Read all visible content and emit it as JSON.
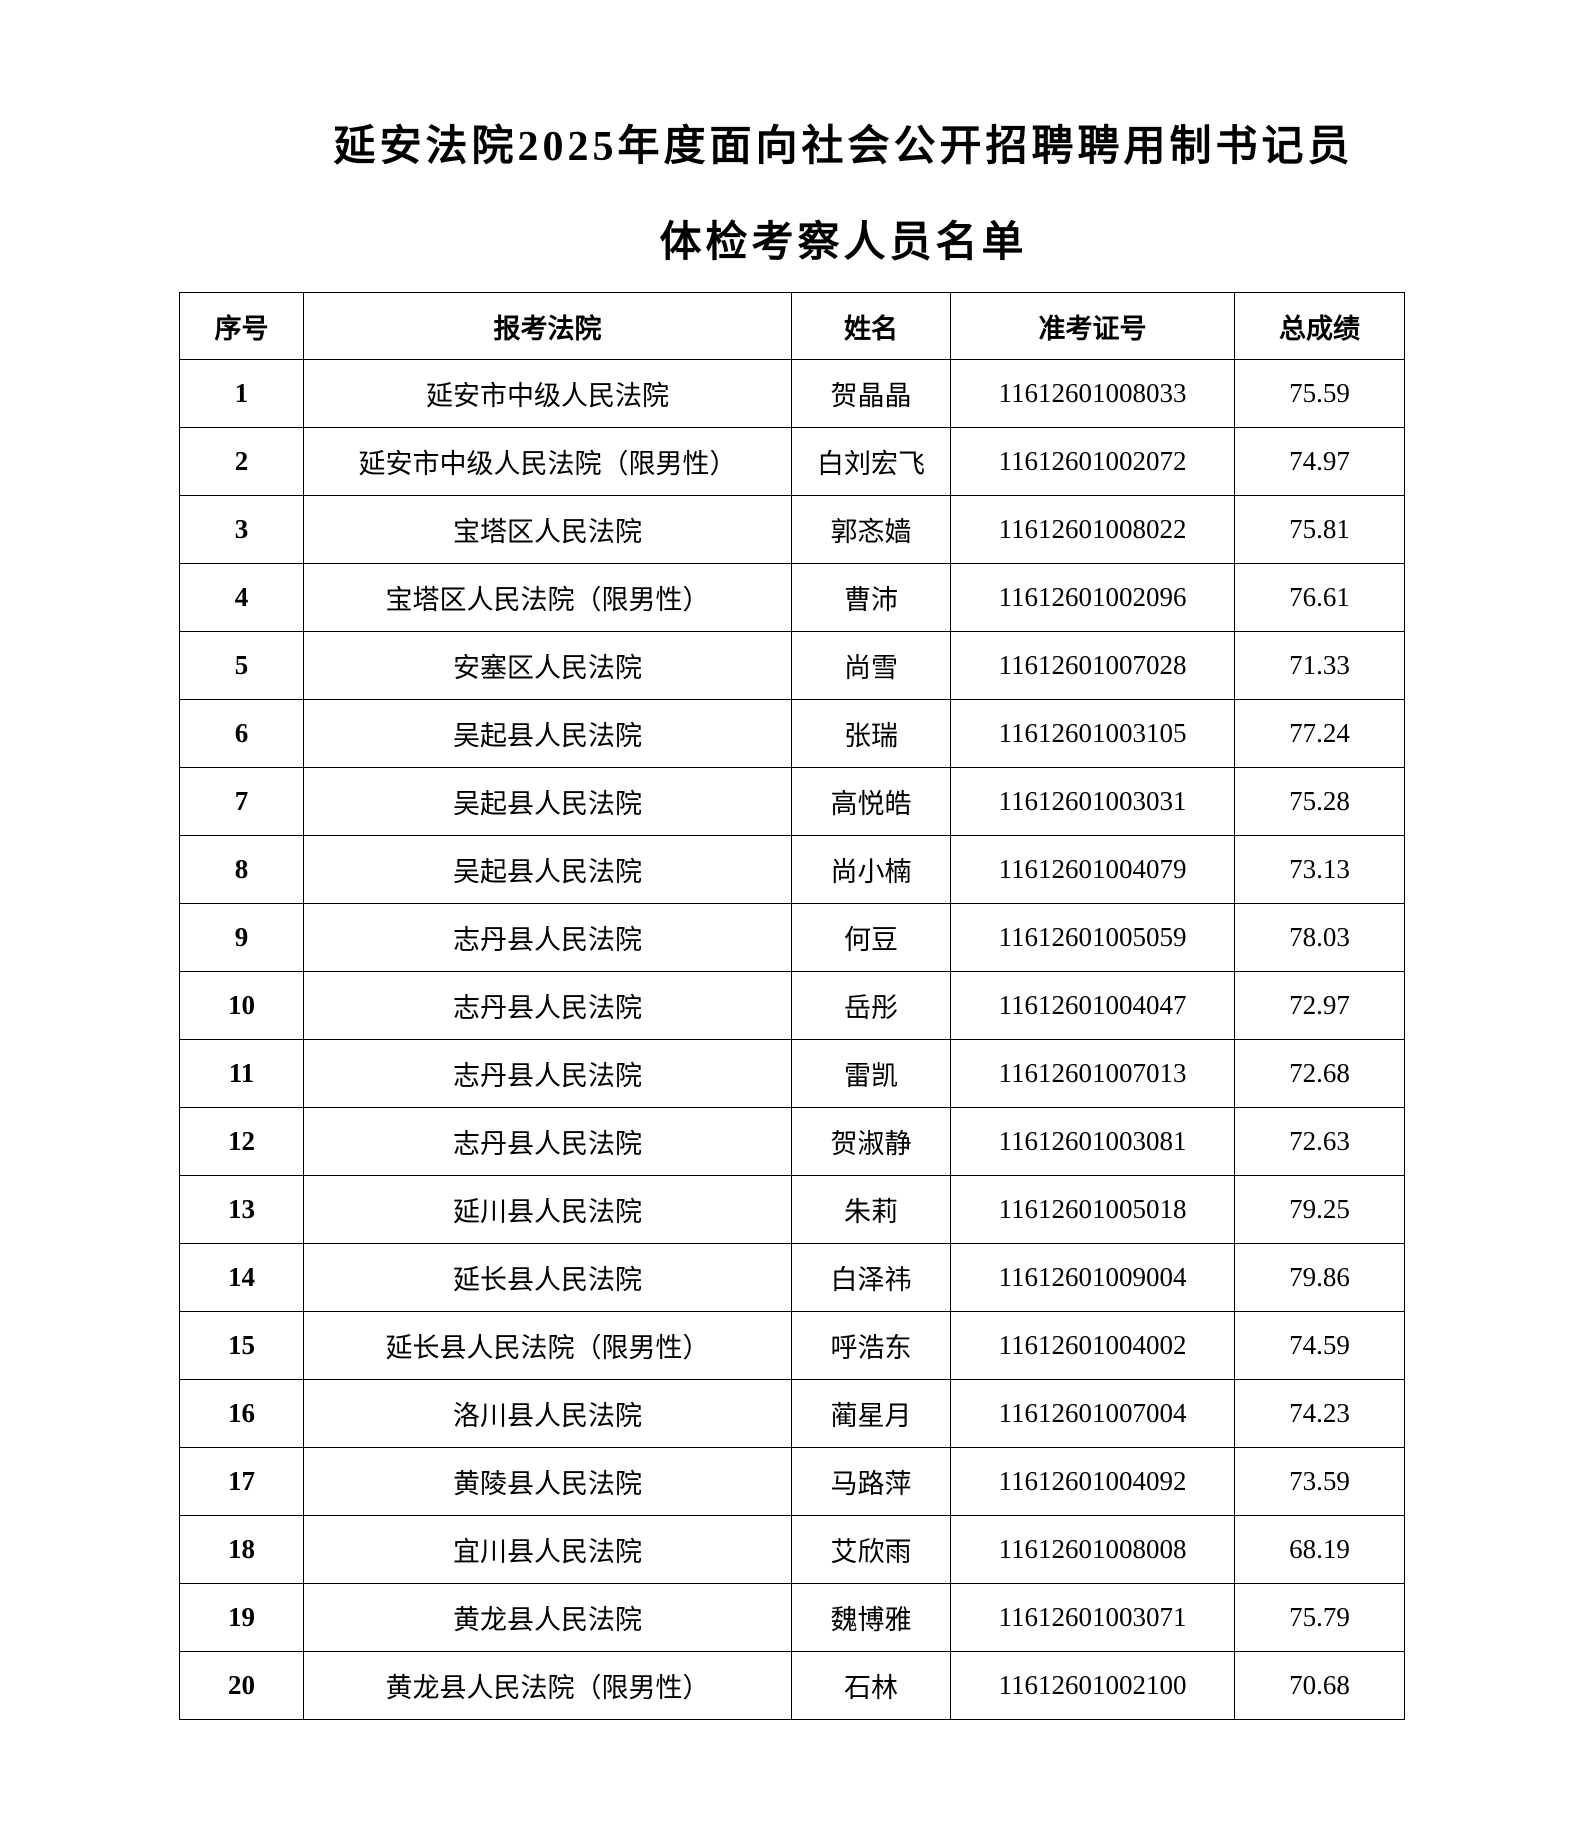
{
  "document": {
    "title_line1": "延安法院2025年度面向社会公开招聘聘用制书记员",
    "title_line2": "体检考察人员名单"
  },
  "table": {
    "headers": [
      "序号",
      "报考法院",
      "姓名",
      "准考证号",
      "总成绩"
    ],
    "rows": [
      [
        "1",
        "延安市中级人民法院",
        "贺晶晶",
        "11612601008033",
        "75.59"
      ],
      [
        "2",
        "延安市中级人民法院（限男性）",
        "白刘宏飞",
        "11612601002072",
        "74.97"
      ],
      [
        "3",
        "宝塔区人民法院",
        "郭忞嫱",
        "11612601008022",
        "75.81"
      ],
      [
        "4",
        "宝塔区人民法院（限男性）",
        "曹沛",
        "11612601002096",
        "76.61"
      ],
      [
        "5",
        "安塞区人民法院",
        "尚雪",
        "11612601007028",
        "71.33"
      ],
      [
        "6",
        "吴起县人民法院",
        "张瑞",
        "11612601003105",
        "77.24"
      ],
      [
        "7",
        "吴起县人民法院",
        "高悦皓",
        "11612601003031",
        "75.28"
      ],
      [
        "8",
        "吴起县人民法院",
        "尚小楠",
        "11612601004079",
        "73.13"
      ],
      [
        "9",
        "志丹县人民法院",
        "何豆",
        "11612601005059",
        "78.03"
      ],
      [
        "10",
        "志丹县人民法院",
        "岳彤",
        "11612601004047",
        "72.97"
      ],
      [
        "11",
        "志丹县人民法院",
        "雷凯",
        "11612601007013",
        "72.68"
      ],
      [
        "12",
        "志丹县人民法院",
        "贺淑静",
        "11612601003081",
        "72.63"
      ],
      [
        "13",
        "延川县人民法院",
        "朱莉",
        "11612601005018",
        "79.25"
      ],
      [
        "14",
        "延长县人民法院",
        "白泽祎",
        "11612601009004",
        "79.86"
      ],
      [
        "15",
        "延长县人民法院（限男性）",
        "呼浩东",
        "11612601004002",
        "74.59"
      ],
      [
        "16",
        "洛川县人民法院",
        "蔺星月",
        "11612601007004",
        "74.23"
      ],
      [
        "17",
        "黄陵县人民法院",
        "马路萍",
        "11612601004092",
        "73.59"
      ],
      [
        "18",
        "宜川县人民法院",
        "艾欣雨",
        "11612601008008",
        "68.19"
      ],
      [
        "19",
        "黄龙县人民法院",
        "魏博雅",
        "11612601003071",
        "75.79"
      ],
      [
        "20",
        "黄龙县人民法院（限男性）",
        "石林",
        "11612601002100",
        "70.68"
      ]
    ]
  }
}
